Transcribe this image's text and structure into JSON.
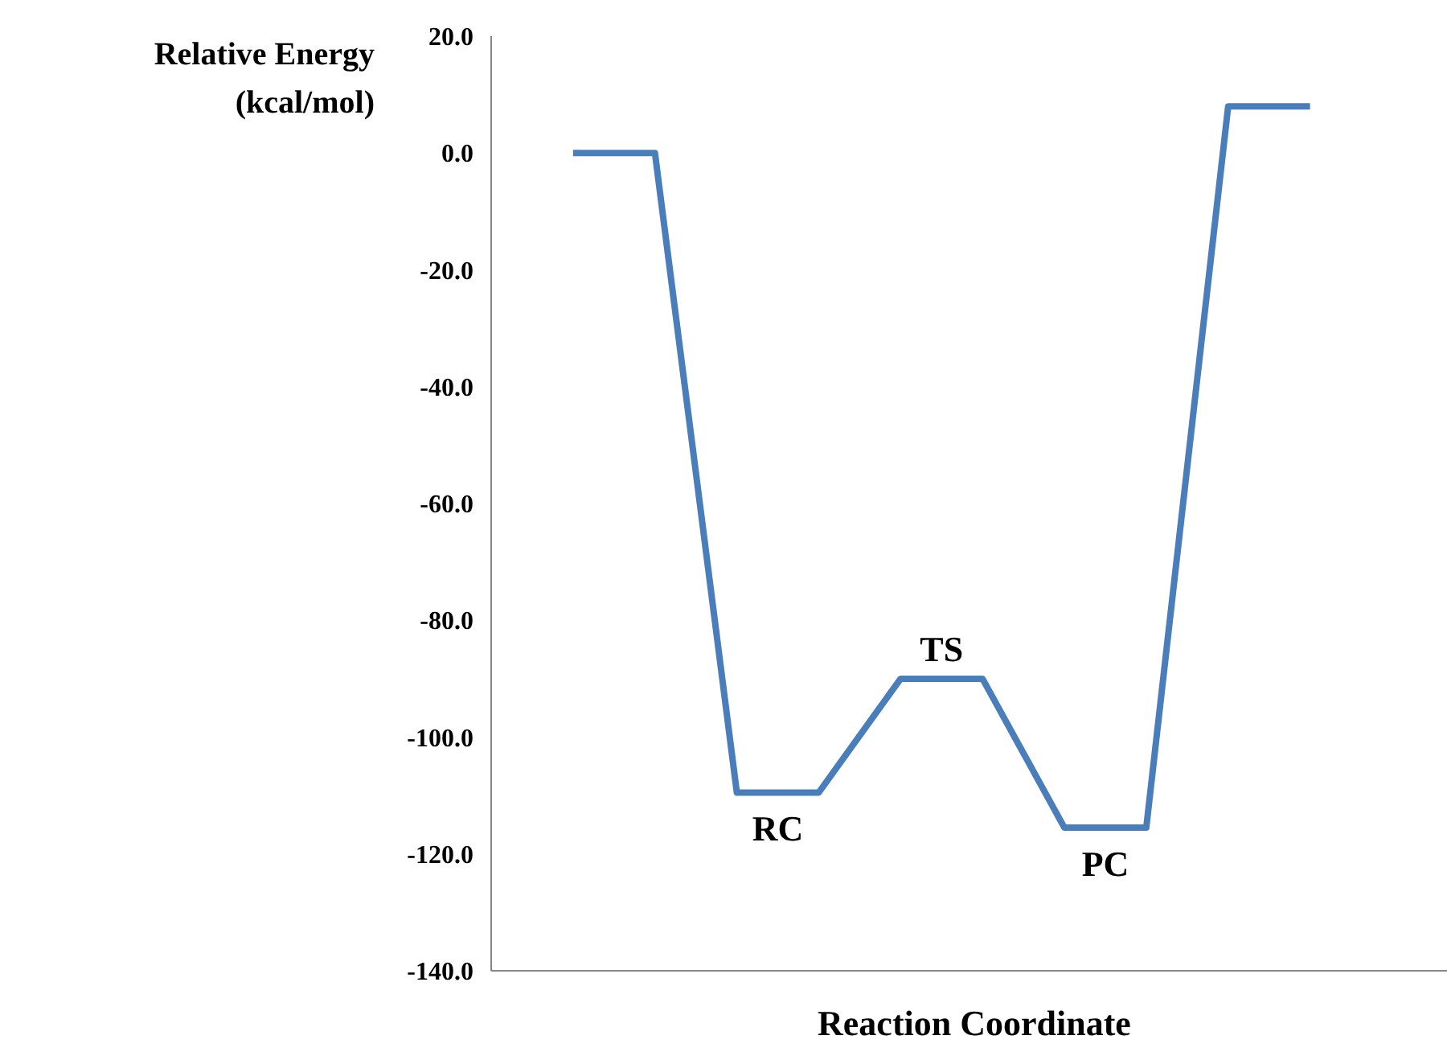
{
  "chart_data": {
    "type": "line",
    "xlabel": "Reaction Coordinate",
    "ylabel": "Relative Energy (kcal/mol)",
    "categories": [
      null,
      null,
      null,
      null,
      null,
      null,
      null,
      null,
      null,
      null
    ],
    "series": [
      {
        "color": "#4a7ebb",
        "values": [
          0,
          0,
          -109.5,
          -109.5,
          -90,
          -90,
          -115.5,
          -115.5,
          8,
          8
        ]
      }
    ],
    "annotations": [
      {
        "text": "RC",
        "y": -109.5
      },
      {
        "text": "TS",
        "y": -90
      },
      {
        "text": "PC",
        "y": -115.5
      }
    ],
    "ylim": [
      -140,
      20
    ],
    "yticks": [
      {
        "value": -140,
        "label": "-140.0"
      },
      {
        "value": -120,
        "label": "-120.0"
      },
      {
        "value": -100,
        "label": "-100.0"
      },
      {
        "value": -80,
        "label": "-80.0"
      },
      {
        "value": -60,
        "label": "-60.0"
      },
      {
        "value": -40,
        "label": "-40.0"
      },
      {
        "value": -20,
        "label": "-20.0"
      },
      {
        "value": 0,
        "label": "0.0"
      },
      {
        "value": 20,
        "label": "20.0"
      }
    ],
    "tick_labels": "y",
    "grid": false,
    "marker": "none",
    "line_style": "solid"
  }
}
